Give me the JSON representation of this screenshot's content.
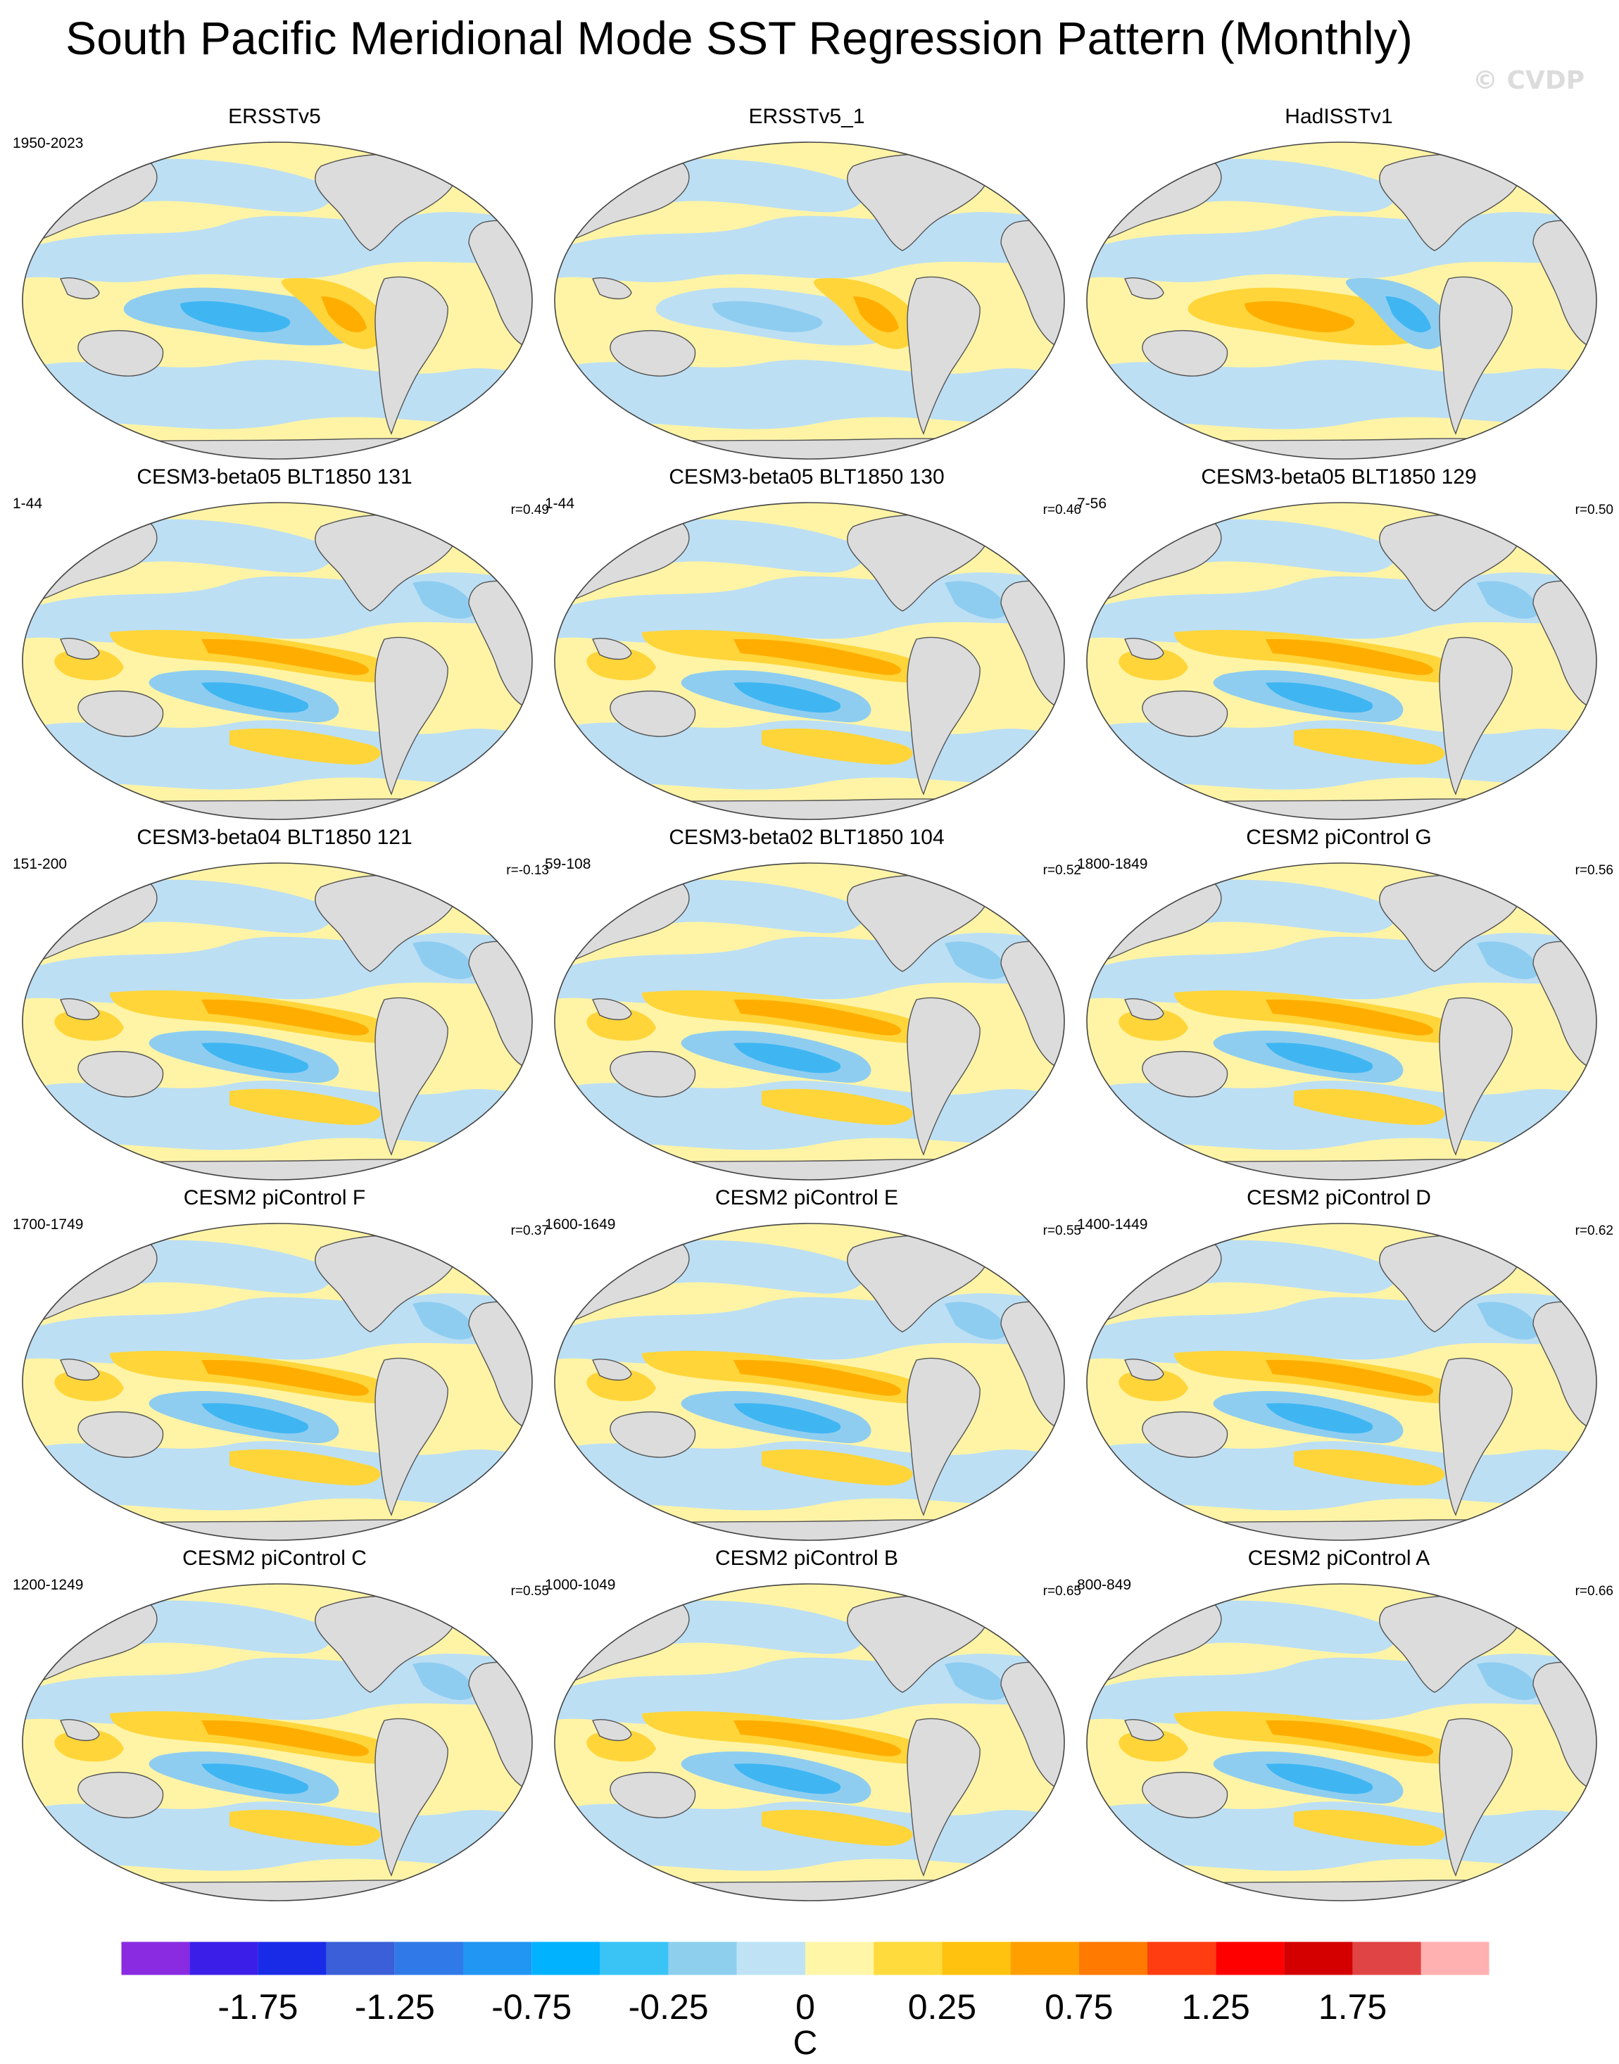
{
  "title": "South Pacific Meridional Mode SST Regression Pattern (Monthly)",
  "copyright": "© CVDP",
  "panels": [
    {
      "title": "ERSSTv5",
      "years": "1950-2023",
      "r": ""
    },
    {
      "title": "ERSSTv5_1",
      "years": "",
      "r": ""
    },
    {
      "title": "HadISSTv1",
      "years": "",
      "r": ""
    },
    {
      "title": "CESM3-beta05 BLT1850 131",
      "years": "1-44",
      "r": "r=0.49"
    },
    {
      "title": "CESM3-beta05 BLT1850 130",
      "years": "1-44",
      "r": "r=0.46"
    },
    {
      "title": "CESM3-beta05 BLT1850 129",
      "years": "7-56",
      "r": "r=0.50"
    },
    {
      "title": "CESM3-beta04 BLT1850 121",
      "years": "151-200",
      "r": "r=-0.13"
    },
    {
      "title": "CESM3-beta02 BLT1850 104",
      "years": "59-108",
      "r": "r=0.52"
    },
    {
      "title": "CESM2 piControl G",
      "years": "1800-1849",
      "r": "r=0.56"
    },
    {
      "title": "CESM2 piControl F",
      "years": "1700-1749",
      "r": "r=0.37"
    },
    {
      "title": "CESM2 piControl E",
      "years": "1600-1649",
      "r": "r=0.55"
    },
    {
      "title": "CESM2 piControl D",
      "years": "1400-1449",
      "r": "r=0.62"
    },
    {
      "title": "CESM2 piControl C",
      "years": "1200-1249",
      "r": "r=0.55"
    },
    {
      "title": "CESM2 piControl B",
      "years": "1000-1049",
      "r": "r=0.65"
    },
    {
      "title": "CESM2 piControl A",
      "years": "800-849",
      "r": "r=0.66"
    }
  ],
  "colorbar": {
    "unit": "C",
    "tick_labels": [
      "-1.75",
      "-1.25",
      "-0.75",
      "-0.25",
      "0",
      "0.25",
      "0.75",
      "1.25",
      "1.75"
    ],
    "colors": [
      "#8a2be2",
      "#3b1ee8",
      "#1a2be8",
      "#3a5fd8",
      "#2f7ae8",
      "#2196f3",
      "#00b2ff",
      "#39c4f5",
      "#8ecfee",
      "#bfe3f5",
      "#fff6a8",
      "#ffdb3e",
      "#ffc20e",
      "#ff9f00",
      "#ff7a00",
      "#ff3d10",
      "#ff0000",
      "#d40000",
      "#e04444",
      "#ffb0b0"
    ]
  },
  "map_colors": {
    "land": "#dcdcdc",
    "neutral_warm": "#fff4a6",
    "neutral_cool": "#bcdff4",
    "cool_mid": "#8fcdf0",
    "cool_strong": "#3fb6f2",
    "warm_mid": "#ffd53a",
    "warm_strong": "#ffae00"
  }
}
